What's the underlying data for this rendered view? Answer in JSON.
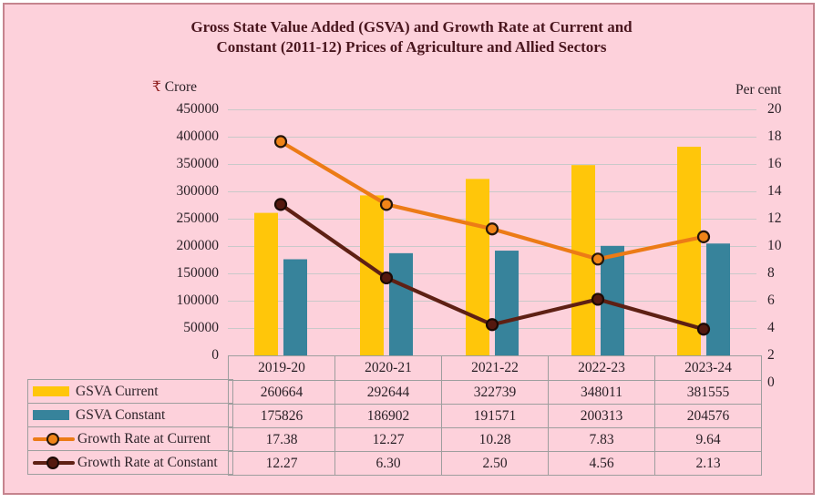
{
  "title_lines": [
    "Gross State Value Added (GSVA) and Growth Rate at Current and",
    "Constant (2011-12) Prices of Agriculture and Allied Sectors"
  ],
  "axes": {
    "left_unit_symbol": "₹",
    "left_unit": "Crore",
    "right_unit": "Per cent",
    "left_ticks": [
      "450000",
      "400000",
      "350000",
      "300000",
      "250000",
      "200000",
      "150000",
      "100000",
      "50000",
      "0"
    ],
    "right_ticks": [
      "20",
      "18",
      "16",
      "14",
      "12",
      "10",
      "8",
      "6",
      "4",
      "2",
      "0"
    ]
  },
  "chart_data": {
    "type": "combo",
    "categories": [
      "2019-20",
      "2020-21",
      "2021-22",
      "2022-23",
      "2023-24"
    ],
    "series": [
      {
        "name": "GSVA Current",
        "type": "bar",
        "axis": "left",
        "color": "#FFC60A",
        "values": [
          260664,
          292644,
          322739,
          348011,
          381555
        ]
      },
      {
        "name": "GSVA Constant",
        "type": "bar",
        "axis": "left",
        "color": "#37839B",
        "values": [
          175826,
          186902,
          191571,
          200313,
          204576
        ]
      },
      {
        "name": "Growth Rate at Current",
        "type": "line",
        "axis": "right",
        "color": "#EC7B16",
        "marker_fill": "#F08418",
        "marker_stroke": "#26160A",
        "values": [
          17.38,
          12.27,
          10.28,
          7.83,
          9.64
        ]
      },
      {
        "name": "Growth Rate at Constant",
        "type": "line",
        "axis": "right",
        "color": "#5E2014",
        "marker_fill": "#54190F",
        "marker_stroke": "#1C0A05",
        "values": [
          12.27,
          6.3,
          2.5,
          4.56,
          2.13
        ]
      }
    ],
    "left_axis": {
      "label": "₹ Crore",
      "min": 0,
      "max": 450000,
      "step": 50000
    },
    "right_axis": {
      "label": "Per cent",
      "min": 0,
      "max": 20,
      "step": 2
    },
    "grid": true,
    "legend_position": "left-of-table"
  },
  "table": {
    "column_headers": [
      "2019-20",
      "2020-21",
      "2021-22",
      "2022-23",
      "2023-24"
    ],
    "rows": [
      {
        "label": "GSVA Current",
        "legend": {
          "type": "bar",
          "color": "#FFC60A"
        },
        "values": [
          "260664",
          "292644",
          "322739",
          "348011",
          "381555"
        ]
      },
      {
        "label": "GSVA Constant",
        "legend": {
          "type": "bar",
          "color": "#37839B"
        },
        "values": [
          "175826",
          "186902",
          "191571",
          "200313",
          "204576"
        ]
      },
      {
        "label": "Growth Rate at Current",
        "legend": {
          "type": "line",
          "color": "#EC7B16",
          "dot_fill": "#F08418",
          "dot_stroke": "#26160A"
        },
        "values": [
          "17.38",
          "12.27",
          "10.28",
          "7.83",
          "9.64"
        ]
      },
      {
        "label": "Growth Rate at Constant",
        "legend": {
          "type": "line",
          "color": "#5E2014",
          "dot_fill": "#54190F",
          "dot_stroke": "#1C0A05"
        },
        "values": [
          "12.27",
          "6.30",
          "2.50",
          "4.56",
          "2.13"
        ]
      }
    ]
  },
  "colors": {
    "panel_background": "#FDD1DB",
    "panel_border": "#C5848E",
    "title_text": "#4A161E",
    "body_text": "#2B2127",
    "gridline": "#C9C9C9",
    "table_border": "#9E9E9E",
    "rupee_symbol": "#8C1A1A"
  }
}
